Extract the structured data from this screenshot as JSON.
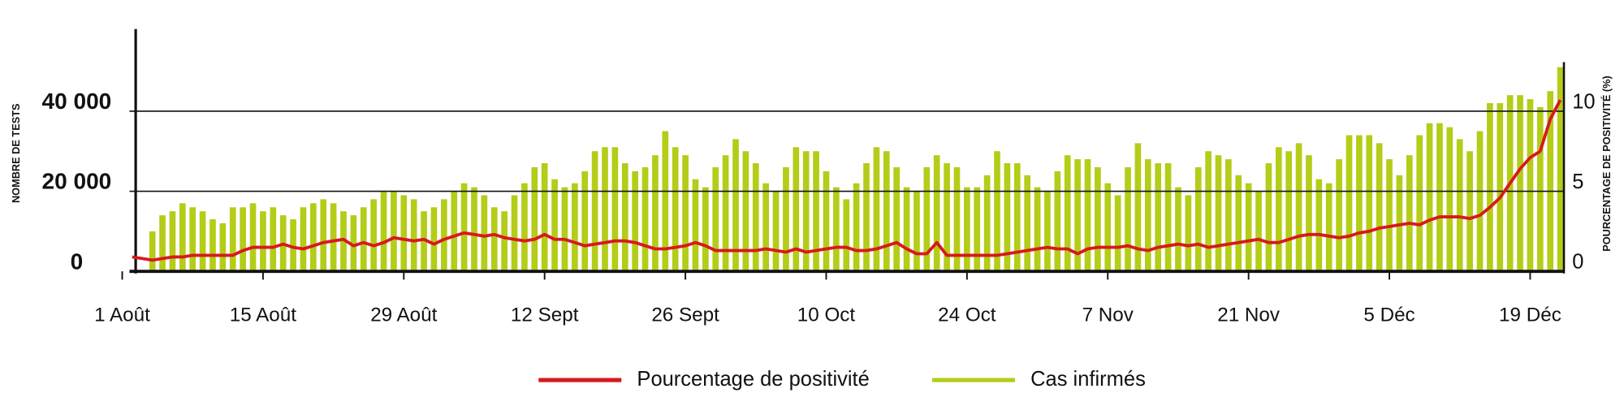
{
  "chart_data": {
    "type": "bar",
    "y_label": "NOMBRE DE TESTS",
    "y2_label": "POURCENTAGE DE POSITIVITÉ (%)",
    "categories": [
      "1 Août",
      null,
      null,
      null,
      null,
      null,
      null,
      null,
      null,
      null,
      null,
      null,
      null,
      null,
      "15 Août",
      null,
      null,
      null,
      null,
      null,
      null,
      null,
      null,
      null,
      null,
      null,
      null,
      null,
      "29 Août",
      null,
      null,
      null,
      null,
      null,
      null,
      null,
      null,
      null,
      null,
      null,
      null,
      null,
      "12 Sept",
      null,
      null,
      null,
      null,
      null,
      null,
      null,
      null,
      null,
      null,
      null,
      null,
      null,
      "26 Sept",
      null,
      null,
      null,
      null,
      null,
      null,
      null,
      null,
      null,
      null,
      null,
      null,
      null,
      "10 Oct",
      null,
      null,
      null,
      null,
      null,
      null,
      null,
      null,
      null,
      null,
      null,
      null,
      null,
      "24 Oct",
      null,
      null,
      null,
      null,
      null,
      null,
      null,
      null,
      null,
      null,
      null,
      null,
      null,
      "7 Nov",
      null,
      null,
      null,
      null,
      null,
      null,
      null,
      null,
      null,
      null,
      null,
      null,
      null,
      "21 Nov",
      null,
      null,
      null,
      null,
      null,
      null,
      null,
      null,
      null,
      null,
      null,
      null,
      null,
      "5 Déc",
      null,
      null,
      null,
      null,
      null,
      null,
      null,
      null,
      null,
      null,
      null,
      null,
      null,
      "19 Déc",
      null,
      null,
      null
    ],
    "series": [
      {
        "name": "Pourcentage de positivité",
        "type": "line",
        "axis": "y2",
        "color": "#d7191c",
        "values": [
          null,
          0.9,
          0.8,
          0.7,
          0.8,
          0.9,
          0.9,
          1.0,
          1.0,
          1.0,
          1.0,
          1.0,
          1.3,
          1.5,
          1.5,
          1.5,
          1.7,
          1.5,
          1.4,
          1.6,
          1.8,
          1.9,
          2.0,
          1.6,
          1.8,
          1.6,
          1.8,
          2.1,
          2.0,
          1.9,
          2.0,
          1.7,
          2.0,
          2.2,
          2.4,
          2.3,
          2.2,
          2.3,
          2.1,
          2.0,
          1.9,
          2.0,
          2.3,
          2.0,
          2.0,
          1.8,
          1.6,
          1.7,
          1.8,
          1.9,
          1.9,
          1.8,
          1.6,
          1.4,
          1.4,
          1.5,
          1.6,
          1.8,
          1.6,
          1.3,
          1.3,
          1.3,
          1.3,
          1.3,
          1.4,
          1.3,
          1.2,
          1.4,
          1.2,
          1.3,
          1.4,
          1.5,
          1.5,
          1.3,
          1.3,
          1.4,
          1.6,
          1.8,
          1.4,
          1.1,
          1.1,
          1.8,
          1.0,
          1.0,
          1.0,
          1.0,
          1.0,
          1.0,
          1.1,
          1.2,
          1.3,
          1.4,
          1.5,
          1.4,
          1.4,
          1.1,
          1.4,
          1.5,
          1.5,
          1.5,
          1.6,
          1.4,
          1.3,
          1.5,
          1.6,
          1.7,
          1.6,
          1.7,
          1.5,
          1.6,
          1.7,
          1.8,
          1.9,
          2.0,
          1.8,
          1.8,
          2.0,
          2.2,
          2.3,
          2.3,
          2.2,
          2.1,
          2.2,
          2.4,
          2.5,
          2.7,
          2.8,
          2.9,
          3.0,
          2.9,
          3.2,
          3.4,
          3.4,
          3.4,
          3.3,
          3.5,
          4.0,
          4.6,
          5.5,
          6.4,
          7.1,
          7.5,
          9.5,
          10.7
        ]
      },
      {
        "name": "Cas infirmés",
        "type": "bar",
        "color": "#b5cc18",
        "values": [
          null,
          null,
          null,
          10000,
          14000,
          15000,
          17000,
          16000,
          15000,
          13000,
          12000,
          16000,
          16000,
          17000,
          15000,
          16000,
          14000,
          13000,
          16000,
          17000,
          18000,
          17000,
          15000,
          14000,
          16000,
          18000,
          20000,
          20000,
          19000,
          18000,
          15000,
          16000,
          18000,
          20000,
          22000,
          21000,
          19000,
          16000,
          15000,
          19000,
          22000,
          26000,
          27000,
          23000,
          21000,
          22000,
          25000,
          30000,
          31000,
          31000,
          27000,
          25000,
          26000,
          29000,
          35000,
          31000,
          29000,
          23000,
          21000,
          26000,
          29000,
          33000,
          30000,
          27000,
          22000,
          20000,
          26000,
          31000,
          30000,
          30000,
          25000,
          21000,
          18000,
          22000,
          27000,
          31000,
          30000,
          26000,
          21000,
          20000,
          26000,
          29000,
          27000,
          26000,
          21000,
          21000,
          24000,
          30000,
          27000,
          27000,
          24000,
          21000,
          20000,
          25000,
          29000,
          28000,
          28000,
          26000,
          22000,
          19000,
          26000,
          32000,
          28000,
          27000,
          27000,
          21000,
          19000,
          26000,
          30000,
          29000,
          28000,
          24000,
          22000,
          20000,
          27000,
          31000,
          30000,
          32000,
          29000,
          23000,
          22000,
          28000,
          34000,
          34000,
          34000,
          32000,
          28000,
          24000,
          29000,
          34000,
          37000,
          37000,
          36000,
          33000,
          30000,
          35000,
          42000,
          42000,
          44000,
          44000,
          43000,
          41000,
          45000,
          51000
        ]
      }
    ],
    "ylim": [
      0,
      60000
    ],
    "yticks": [
      0,
      {
        "value": 20000,
        "label": "20 000"
      },
      {
        "value": 40000,
        "label": "40 000"
      }
    ],
    "y2lim": [
      0,
      15
    ],
    "y2ticks": [
      0,
      5,
      10
    ],
    "grid": true,
    "legend": "bottom"
  }
}
